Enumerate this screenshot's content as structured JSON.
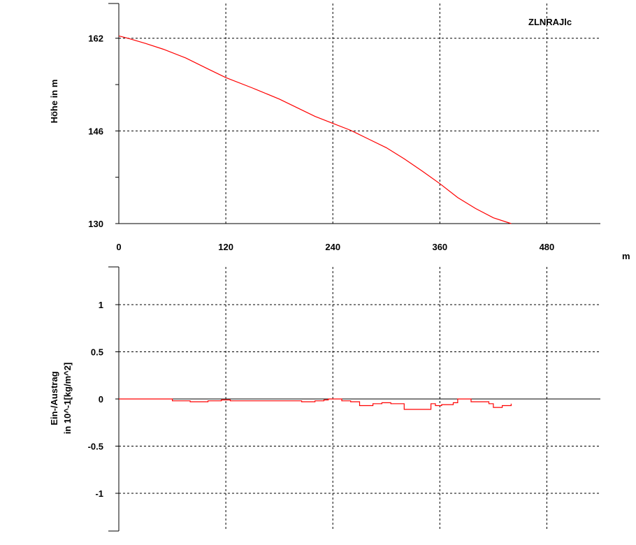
{
  "chart_data": [
    {
      "type": "line",
      "title": "ZLNRAJlc",
      "ylabel": "Höhe in m",
      "xlabel": "m",
      "xlim": [
        0,
        540
      ],
      "ylim": [
        130,
        168
      ],
      "x_ticks": [
        0,
        120,
        240,
        360,
        480
      ],
      "y_ticks": [
        130,
        146,
        162
      ],
      "grid": true,
      "series": [
        {
          "color": "#ff0000",
          "x": [
            0,
            10,
            30,
            50,
            75,
            100,
            120,
            150,
            180,
            200,
            220,
            240,
            260,
            280,
            300,
            320,
            340,
            360,
            380,
            400,
            420,
            440
          ],
          "y": [
            162.4,
            162.0,
            161.1,
            160.1,
            158.6,
            156.7,
            155.2,
            153.4,
            151.5,
            150.0,
            148.5,
            147.3,
            146.1,
            144.6,
            143.1,
            141.2,
            139.1,
            136.9,
            134.5,
            132.6,
            131.0,
            130.0
          ]
        }
      ]
    },
    {
      "type": "line",
      "ylabel_lines": [
        "Ein-/Austrag",
        "in 10^-1[kg/m^2]"
      ],
      "xlim": [
        0,
        540
      ],
      "ylim": [
        -1.4,
        1.4
      ],
      "y_ticks": [
        1,
        0.5,
        0,
        -0.5,
        -1
      ],
      "y_tick_labels": [
        "1",
        "0.5",
        "0",
        "-0.5",
        "-1"
      ],
      "grid": true,
      "series": [
        {
          "color": "#ff0000",
          "step": true,
          "x": [
            0,
            60,
            80,
            100,
            115,
            125,
            180,
            205,
            220,
            230,
            235,
            250,
            260,
            270,
            285,
            295,
            305,
            310,
            320,
            350,
            355,
            362,
            375,
            380,
            395,
            415,
            420,
            430,
            440
          ],
          "y": [
            0,
            -0.02,
            -0.03,
            -0.02,
            -0.01,
            -0.02,
            -0.02,
            -0.03,
            -0.02,
            -0.01,
            0,
            -0.02,
            -0.03,
            -0.07,
            -0.05,
            -0.04,
            -0.05,
            -0.05,
            -0.11,
            -0.05,
            -0.07,
            -0.06,
            -0.04,
            0,
            -0.03,
            -0.05,
            -0.09,
            -0.07,
            -0.05
          ]
        }
      ]
    }
  ]
}
